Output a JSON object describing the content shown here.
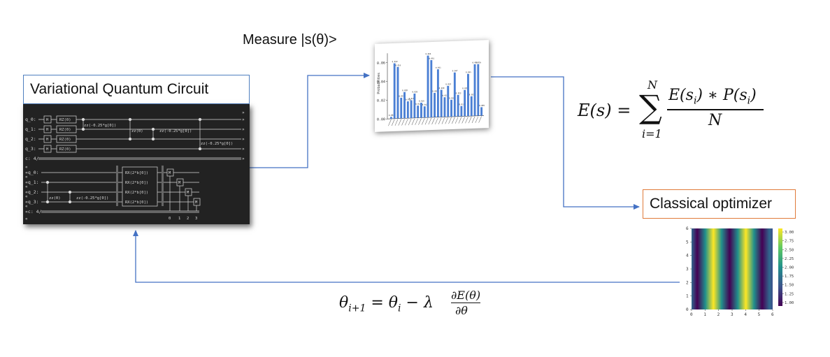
{
  "labels": {
    "vqc": "Variational Quantum Circuit",
    "measure": "Measure |s(θ)>",
    "optimizer": "Classical optimizer"
  },
  "colors": {
    "arrow": "#4472c4",
    "vqc_border": "#4f7fbf",
    "optimizer_border": "#e07a3a",
    "bar": "#4a7fd4",
    "circuit_bg": "#222222",
    "circuit_wire": "#d8d8d8"
  },
  "formulas": {
    "energy": {
      "lhs": "E(s) =",
      "sum_top": "N",
      "sum_bottom": "i=1",
      "numerator": "E(s",
      "numerator_sub1": "i",
      "numerator_mid": ") ∗ P(s",
      "numerator_sub2": "i",
      "numerator_end": ")",
      "denominator": "N"
    },
    "update": {
      "lhs": "θ",
      "lhs_sub": "i+1",
      "eq": " = θ",
      "rhs_sub": "i",
      "minus": " − λ",
      "frac_num": "∂E(θ)",
      "frac_den": "∂θ"
    }
  },
  "circuit": {
    "top_qubits": [
      "q_0:",
      "q_1:",
      "q_2:",
      "q_3:"
    ],
    "top_classical": "c: 4/",
    "bottom_qubits": [
      "«q_0:",
      "«q_1:",
      "«q_2:",
      "«q_3:"
    ],
    "bottom_classical": "«c: 4/",
    "gates": {
      "h": "H",
      "rz": "RZ(0)",
      "zz1": "zz(-0.25*g[0])",
      "zz0": "zz(0)",
      "zz2": "zz(-0.25*g[0])",
      "zz3": "zz(-0.25*g[0])",
      "zzb0": "zz(0)",
      "zzb1": "zz(-0.25*g[0])",
      "rx": "RX(2*b[0])",
      "m": "M"
    },
    "measure_indices": [
      "0",
      "1",
      "2",
      "3"
    ]
  },
  "chart_data": [
    {
      "type": "bar",
      "ylabel": "Probabilities",
      "ylim": [
        0,
        0.07
      ],
      "yticks": [
        "0.00",
        "0.02",
        "0.04",
        "0.06"
      ],
      "values": [
        0.002,
        0.059,
        0.055,
        0.022,
        0.028,
        0.018,
        0.019,
        0.026,
        0.013,
        0.016,
        0.012,
        0.066,
        0.061,
        0.026,
        0.051,
        0.029,
        0.021,
        0.033,
        0.018,
        0.047,
        0.023,
        0.011,
        0.028,
        0.045,
        0.021,
        0.055,
        0.055,
        0.009
      ],
      "data_labels": [
        "0.002",
        "0.059",
        "0.055",
        "0.022",
        "0.028",
        "0.018",
        "0.019",
        "0.026",
        "0.013",
        "0.016",
        "0.012",
        "0.066",
        "0.061",
        "0.026",
        "0.051",
        "0.029",
        "0.021",
        "0.033",
        "0.018",
        "0.047",
        "0.023",
        "0.011",
        "0.028",
        "0.045",
        "0.021",
        "0.055",
        "0.055",
        "0.009"
      ],
      "grid": false
    },
    {
      "type": "heatmap",
      "pattern": "vertical stripes",
      "xlim": [
        0,
        6
      ],
      "ylim": [
        0,
        6
      ],
      "xticks": [
        "0",
        "1",
        "2",
        "3",
        "4",
        "5",
        "6"
      ],
      "yticks": [
        "0",
        "1",
        "2",
        "3",
        "4",
        "5",
        "6"
      ],
      "colorbar_ticks": [
        "1.00",
        "1.25",
        "1.50",
        "1.75",
        "2.00",
        "2.25",
        "2.50",
        "2.75",
        "3.00"
      ],
      "colormap": "viridis",
      "value_range": [
        0.9,
        3.1
      ]
    }
  ]
}
